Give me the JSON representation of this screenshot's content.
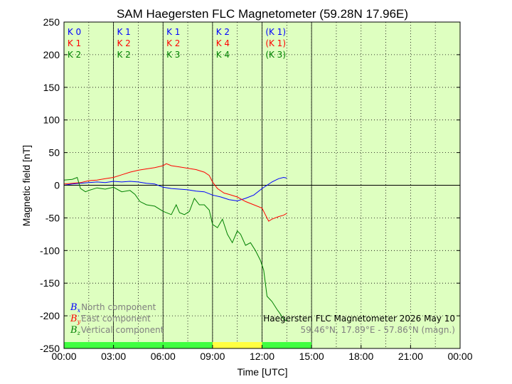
{
  "chart_data": {
    "type": "line",
    "title": "SAM Haegersten FLC Magnetometer (59.28N 17.96E)",
    "xlabel": "Time [UTC]",
    "ylabel": "Magnetic field [nT]",
    "xlim_hours": [
      0,
      24
    ],
    "ylim": [
      -250,
      250
    ],
    "x_tick_labels": [
      "00:00",
      "03:00",
      "06:00",
      "09:00",
      "12:00",
      "15:00",
      "18:00",
      "21:00",
      "00:00"
    ],
    "y_ticks": [
      -250,
      -200,
      -150,
      -100,
      -50,
      0,
      50,
      100,
      150,
      200,
      250
    ],
    "grid": true,
    "background_color": "#deffc0",
    "k_index_rows": [
      {
        "component": "x",
        "color": "#0000ff",
        "labels": [
          "K 0",
          "K 1",
          "K 1",
          "K 2",
          "(K 1)"
        ]
      },
      {
        "component": "y",
        "color": "#ff0000",
        "labels": [
          "K 1",
          "K 2",
          "K 2",
          "K 4",
          "(K 1)"
        ]
      },
      {
        "component": "z",
        "color": "#008000",
        "labels": [
          "K 2",
          "K 2",
          "K 3",
          "K 4",
          "(K 3)"
        ]
      }
    ],
    "activity_bar": [
      {
        "start": 0,
        "end": 9,
        "color": "#40ff40"
      },
      {
        "start": 9,
        "end": 12,
        "color": "#ffff40"
      },
      {
        "start": 12,
        "end": 15,
        "color": "#40ff40"
      }
    ],
    "series": [
      {
        "name": "North component",
        "symbol": "B",
        "sub": "x",
        "color": "#0000ff",
        "points": [
          [
            0,
            0
          ],
          [
            0.5,
            2
          ],
          [
            1,
            3
          ],
          [
            1.5,
            4
          ],
          [
            2,
            5
          ],
          [
            2.5,
            4
          ],
          [
            3,
            6
          ],
          [
            3.5,
            5
          ],
          [
            4,
            6
          ],
          [
            4.5,
            5
          ],
          [
            5,
            3
          ],
          [
            5.5,
            2
          ],
          [
            6,
            -3
          ],
          [
            6.5,
            -5
          ],
          [
            7,
            -6
          ],
          [
            7.5,
            -7
          ],
          [
            8,
            -9
          ],
          [
            8.5,
            -10
          ],
          [
            9,
            -15
          ],
          [
            9.5,
            -18
          ],
          [
            10,
            -22
          ],
          [
            10.5,
            -24
          ],
          [
            11,
            -20
          ],
          [
            11.5,
            -15
          ],
          [
            12,
            -5
          ],
          [
            12.3,
            0
          ],
          [
            12.6,
            5
          ],
          [
            13,
            10
          ],
          [
            13.3,
            12
          ],
          [
            13.5,
            11
          ]
        ]
      },
      {
        "name": "East component",
        "symbol": "B",
        "sub": "y",
        "color": "#ff0000",
        "points": [
          [
            0,
            2
          ],
          [
            0.5,
            3
          ],
          [
            1,
            4
          ],
          [
            1.5,
            7
          ],
          [
            2,
            8
          ],
          [
            2.5,
            10
          ],
          [
            3,
            12
          ],
          [
            3.5,
            16
          ],
          [
            4,
            20
          ],
          [
            4.5,
            23
          ],
          [
            5,
            25
          ],
          [
            5.5,
            27
          ],
          [
            6,
            30
          ],
          [
            6.2,
            33
          ],
          [
            6.5,
            30
          ],
          [
            7,
            28
          ],
          [
            7.5,
            26
          ],
          [
            8,
            24
          ],
          [
            8.5,
            20
          ],
          [
            8.8,
            15
          ],
          [
            9,
            5
          ],
          [
            9.3,
            -5
          ],
          [
            9.7,
            -12
          ],
          [
            10,
            -14
          ],
          [
            10.5,
            -18
          ],
          [
            11,
            -25
          ],
          [
            11.5,
            -30
          ],
          [
            12,
            -35
          ],
          [
            12.2,
            -45
          ],
          [
            12.4,
            -55
          ],
          [
            12.6,
            -52
          ],
          [
            13,
            -48
          ],
          [
            13.3,
            -46
          ],
          [
            13.5,
            -43
          ]
        ]
      },
      {
        "name": "Vertical component",
        "symbol": "B",
        "sub": "z",
        "color": "#008000",
        "points": [
          [
            0,
            8
          ],
          [
            0.5,
            9
          ],
          [
            0.8,
            12
          ],
          [
            1,
            -5
          ],
          [
            1.3,
            -10
          ],
          [
            1.5,
            -8
          ],
          [
            2,
            -4
          ],
          [
            2.5,
            -6
          ],
          [
            3,
            -3
          ],
          [
            3.5,
            -10
          ],
          [
            4,
            -8
          ],
          [
            4.3,
            -14
          ],
          [
            4.6,
            -25
          ],
          [
            5,
            -30
          ],
          [
            5.5,
            -32
          ],
          [
            6,
            -40
          ],
          [
            6.5,
            -45
          ],
          [
            6.8,
            -30
          ],
          [
            7,
            -42
          ],
          [
            7.3,
            -45
          ],
          [
            7.6,
            -40
          ],
          [
            7.9,
            -20
          ],
          [
            8.2,
            -30
          ],
          [
            8.5,
            -30
          ],
          [
            8.8,
            -38
          ],
          [
            9,
            -60
          ],
          [
            9.3,
            -65
          ],
          [
            9.6,
            -52
          ],
          [
            9.9,
            -75
          ],
          [
            10.2,
            -88
          ],
          [
            10.5,
            -70
          ],
          [
            10.7,
            -75
          ],
          [
            11,
            -92
          ],
          [
            11.3,
            -88
          ],
          [
            11.6,
            -100
          ],
          [
            11.9,
            -115
          ],
          [
            12.1,
            -130
          ],
          [
            12.3,
            -170
          ],
          [
            12.6,
            -178
          ],
          [
            12.9,
            -190
          ],
          [
            13.1,
            -197
          ],
          [
            13.3,
            -205
          ],
          [
            13.5,
            -208
          ]
        ]
      }
    ],
    "info_line1": "Haegersten FLC Magnetometer 2026 May 10",
    "info_line2": "59.46°N, 17.89°E - 57.86°N (magn.)"
  }
}
